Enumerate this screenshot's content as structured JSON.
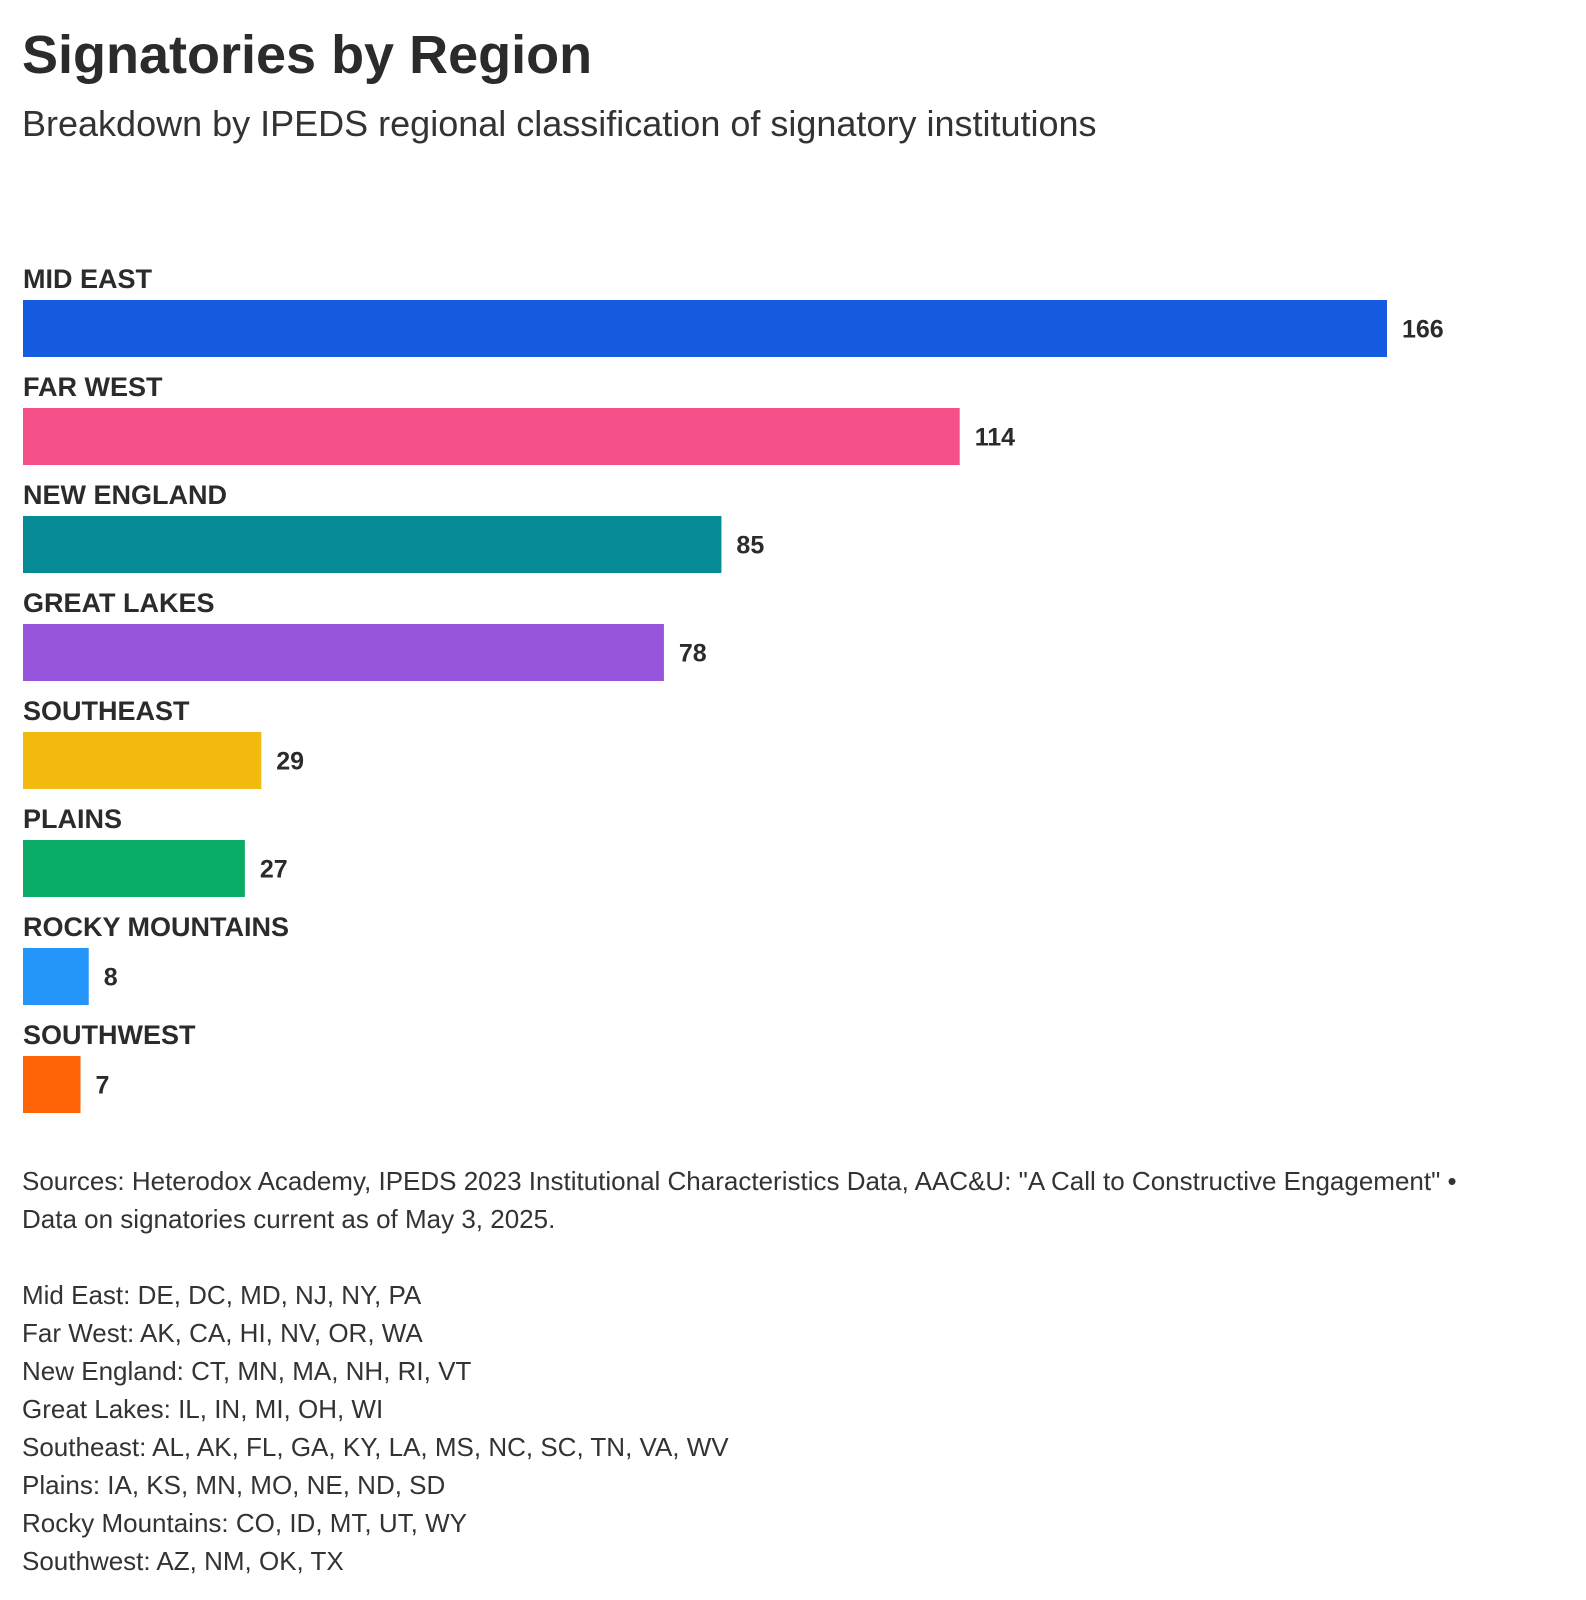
{
  "chart_data": {
    "type": "bar",
    "orientation": "horizontal",
    "title": "Signatories by Region",
    "subtitle": "Breakdown by IPEDS regional classification of signatory institutions",
    "categories": [
      "MID EAST",
      "FAR WEST",
      "NEW ENGLAND",
      "GREAT LAKES",
      "SOUTHEAST",
      "PLAINS",
      "ROCKY MOUNTAINS",
      "SOUTHWEST"
    ],
    "values": [
      166,
      114,
      85,
      78,
      29,
      27,
      8,
      7
    ],
    "colors": [
      "#165ce0",
      "#f5508a",
      "#058a96",
      "#9655dc",
      "#f2b90f",
      "#0aab66",
      "#2496fa",
      "#ff6407"
    ],
    "xlim": [
      0,
      166
    ],
    "grid": false,
    "legend": "none",
    "data_labels": true
  },
  "footer": {
    "sources": "Sources: Heterodox Academy, IPEDS 2023 Institutional Characteristics Data, AAC&U: \"A Call to Constructive Engagement\" • Data on signatories current as of May 3, 2025.",
    "regions": [
      "Mid East: DE, DC, MD, NJ, NY, PA",
      "Far West: AK, CA, HI, NV, OR, WA",
      "New England: CT, MN, MA, NH, RI, VT",
      "Great Lakes: IL, IN, MI, OH, WI",
      "Southeast: AL, AK, FL, GA, KY, LA, MS, NC, SC, TN, VA, WV",
      "Plains: IA, KS, MN, MO, NE, ND, SD",
      "Rocky Mountains: CO, ID, MT, UT, WY",
      "Southwest: AZ, NM, OK, TX"
    ]
  }
}
